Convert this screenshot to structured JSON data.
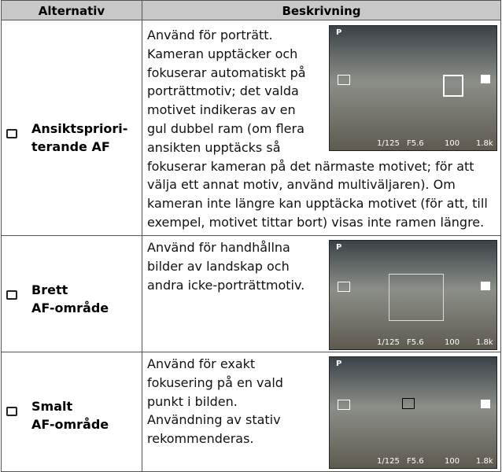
{
  "table": {
    "headers": [
      "Alternativ",
      "Beskrivning"
    ],
    "rows": [
      {
        "label_lines": [
          "Ansiktspriori-",
          "terande AF"
        ],
        "description_lines": [
          "Använd för porträtt.",
          "Kameran upptäcker och",
          "fokuserar automatiskt på",
          "porträttmotiv; det valda",
          "motivet indikeras av en",
          "gul dubbel ram (om flera",
          "ansikten upptäcks så",
          "fokuserar kameran på det närmaste motivet; för att",
          "välja ett annat motiv, använd multiväljaren).  Om",
          "kameran inte längre kan upptäcka motivet (för att, till",
          "exempel, motivet tittar bort) visas inte ramen längre."
        ],
        "screen": {
          "mode": "P",
          "shutter": "1/125",
          "aperture": "F5.6",
          "iso": "100",
          "remaining": "1.8k"
        }
      },
      {
        "label_lines": [
          "Brett",
          "AF-område"
        ],
        "description_lines": [
          "Använd för handhållna",
          "bilder av landskap och",
          "andra icke-porträttmotiv."
        ],
        "screen": {
          "mode": "P",
          "shutter": "1/125",
          "aperture": "F5.6",
          "iso": "100",
          "remaining": "1.8k"
        }
      },
      {
        "label_lines": [
          "Smalt",
          "AF-område"
        ],
        "description_lines": [
          "Använd för exakt",
          "fokusering på en vald",
          "punkt i bilden.",
          "Användning av stativ",
          "rekommenderas."
        ],
        "screen": {
          "mode": "P",
          "shutter": "1/125",
          "aperture": "F5.6",
          "iso": "100",
          "remaining": "1.8k"
        }
      }
    ]
  }
}
